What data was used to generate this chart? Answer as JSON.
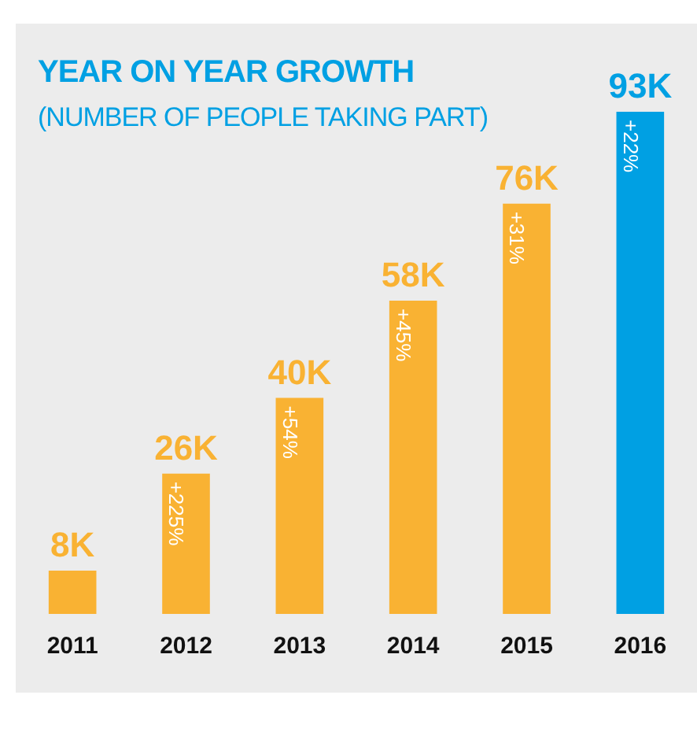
{
  "chart_data": {
    "type": "bar",
    "title": "YEAR ON YEAR GROWTH",
    "subtitle": "(NUMBER OF PEOPLE TAKING PART)",
    "categories": [
      "2011",
      "2012",
      "2013",
      "2014",
      "2015",
      "2016"
    ],
    "values": [
      8,
      26,
      40,
      58,
      76,
      93
    ],
    "colors": [
      "#f9b233",
      "#f9b233",
      "#f9b233",
      "#f9b233",
      "#f9b233",
      "#00a0e3"
    ],
    "value_labels": [
      "8K",
      "26K",
      "40K",
      "58K",
      "76K",
      "93K"
    ],
    "annotations": [
      {
        "text": "+225%",
        "x": "2012",
        "y": 26
      },
      {
        "text": "+54%",
        "x": "2013",
        "y": 40
      },
      {
        "text": "+45%",
        "x": "2014",
        "y": 58
      },
      {
        "text": "+31%",
        "x": "2015",
        "y": 76
      },
      {
        "text": "+22%",
        "x": "2016",
        "y": 93
      }
    ],
    "legend": false,
    "grid": false
  }
}
